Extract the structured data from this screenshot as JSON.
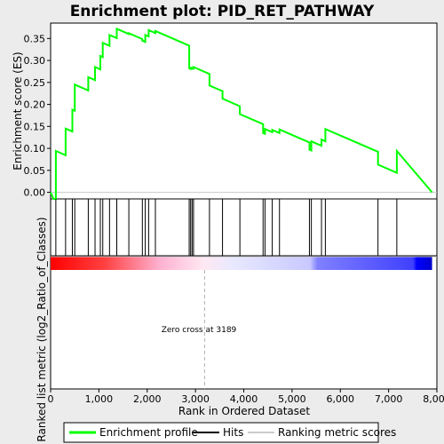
{
  "chart_data": {
    "type": "line",
    "title": "Enrichment plot: PID_RET_PATHWAY",
    "top_ylabel": "Enrichment score (ES)",
    "bottom_ylabel": "Ranked list metric (log2_Ratio_of_Classes)",
    "xlabel": "Rank in Ordered Dataset",
    "xlim": [
      0,
      8000
    ],
    "top_ylim": [
      -0.015,
      0.385
    ],
    "x_ticks": [
      "0",
      "1,000",
      "2,000",
      "3,000",
      "4,000",
      "5,000",
      "6,000",
      "7,000",
      "8,000"
    ],
    "x_tick_values": [
      0,
      1000,
      2000,
      3000,
      4000,
      5000,
      6000,
      7000,
      8000
    ],
    "y_ticks": [
      "0.00",
      "0.05",
      "0.10",
      "0.15",
      "0.20",
      "0.25",
      "0.30",
      "0.35"
    ],
    "y_tick_values": [
      0.0,
      0.05,
      0.1,
      0.15,
      0.2,
      0.25,
      0.3,
      0.35
    ],
    "zero_cross_label": "Zero cross at 3189",
    "zero_cross_rank": 3189,
    "dataset_size": 7900,
    "hit_ranks": [
      108,
      310,
      450,
      500,
      780,
      920,
      1030,
      1080,
      1220,
      1370,
      1620,
      1900,
      1960,
      2030,
      2170,
      2870,
      2900,
      2930,
      2960,
      3290,
      3560,
      3920,
      4400,
      4440,
      4590,
      4740,
      5360,
      5400,
      5610,
      5690,
      6780,
      7170
    ],
    "es_peaks": [
      0.094,
      0.145,
      0.188,
      0.245,
      0.262,
      0.285,
      0.31,
      0.34,
      0.358,
      0.372,
      0.362,
      0.345,
      0.358,
      0.369,
      0.367,
      0.282,
      0.283,
      0.283,
      0.285,
      0.243,
      0.213,
      0.178,
      0.135,
      0.144,
      0.142,
      0.143,
      0.097,
      0.116,
      0.12,
      0.144,
      0.063,
      0.094
    ],
    "es_start": 0.0,
    "es_min": -0.015,
    "es_end": 0.0,
    "colors": {
      "profile": "#00ff00",
      "hits": "#000000",
      "metric_scores": "#cccccc",
      "positive": "#ff0000",
      "negative": "#0000ff",
      "zero_line": "#c8c8c8"
    },
    "legend_position": "bottom",
    "legend": [
      "Enrichment profile",
      "Hits",
      "Ranking metric scores"
    ]
  }
}
